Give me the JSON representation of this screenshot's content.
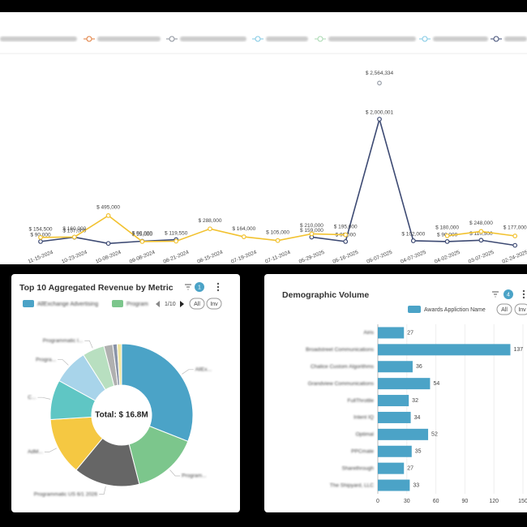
{
  "chart_data": [
    {
      "type": "line",
      "categories": [
        "11-15-2024",
        "10-23-2024",
        "10-08-2024",
        "09-08-2024",
        "08-21-2024",
        "08-15-2024",
        "07-19-2024",
        "07-11-2024",
        "05-29-2025",
        "05-16-2025",
        "05-07-2025",
        "04-07-2025",
        "04-02-2025",
        "03-07-2025",
        "02-24-2025"
      ],
      "ylim": [
        0,
        3000000
      ],
      "series": [
        {
          "color": "#3d4a73",
          "values": [
            90000,
            157000,
            60000,
            95000,
            119550,
            null,
            null,
            null,
            159000,
            90000,
            2000001,
            102000,
            90000,
            110500,
            30000
          ],
          "value_labels": [
            "$ 90,000",
            "$ 157,000",
            null,
            "$ 95,000",
            "$ 119,550",
            null,
            null,
            null,
            "$ 159,000",
            "$ 90,000",
            "$ 2,000,001",
            "$ 102,000",
            "$ 90,000",
            "$ 110,500",
            null
          ]
        },
        {
          "color": "#f2c230",
          "values": [
            154500,
            160000,
            495000,
            90000,
            95000,
            288000,
            164000,
            105000,
            210000,
            195000,
            null,
            null,
            180000,
            248000,
            177000
          ],
          "value_labels": [
            "$ 154,500",
            "$ 160,000",
            "$ 495,000",
            "$ 90,000",
            null,
            "$ 288,000",
            "$ 164,000",
            "$ 105,000",
            "$ 210,000",
            "$ 195,000",
            null,
            null,
            "$ 180,000",
            "$ 248,000",
            "$ 177,000"
          ]
        },
        {
          "color": "#9aa0aa",
          "values": [
            null,
            null,
            null,
            null,
            null,
            null,
            null,
            null,
            null,
            null,
            2564334,
            null,
            null,
            null,
            null
          ],
          "value_labels": [
            null,
            null,
            null,
            null,
            null,
            null,
            null,
            null,
            null,
            null,
            "$ 2,564,334",
            null,
            null,
            null,
            null
          ]
        }
      ]
    },
    {
      "type": "pie",
      "title": "Top 10 Aggregated Revenue by Metric",
      "center_label": "Total: $ 16.8M",
      "legend": [
        "AllExchange Advertising",
        "Program"
      ],
      "legend_page": "1/10",
      "filters": [
        "All",
        "Inv"
      ],
      "badge": "1",
      "categories": [
        "AllEx...",
        "Program...",
        "Programmatic US 6/1 2026",
        "AdM...",
        "C...",
        "Progra...",
        "Programmatic I...",
        null,
        null,
        null
      ],
      "values": [
        31,
        15,
        15,
        13,
        9,
        8,
        5,
        2,
        1,
        1
      ],
      "colors": [
        "#4ba3c7",
        "#7cc68c",
        "#666666",
        "#f5c842",
        "#5fc6c4",
        "#a8d4ea",
        "#b8dfc0",
        "#b0b0b0",
        "#8a94a8",
        "#f0e6a0"
      ]
    },
    {
      "type": "bar",
      "title": "Demographic Volume",
      "legend": "Awards Appliction Name",
      "filters": [
        "All",
        "Inv"
      ],
      "badge": "4",
      "categories": [
        "Airis",
        "Broadstreet Communications",
        "Chalice Custom Algorithms",
        "Grandview Communications",
        "FullThrottle",
        "Intent IQ",
        "Optimal",
        "PPCmate",
        "Sharethrough",
        "The Shipyard, LLC"
      ],
      "values": [
        27,
        137,
        36,
        54,
        32,
        34,
        52,
        35,
        27,
        33
      ],
      "color": "#4ba3c7",
      "xlim": [
        0,
        150
      ],
      "xticks": [
        0,
        30,
        60,
        90,
        120,
        150
      ],
      "grid": true
    }
  ]
}
